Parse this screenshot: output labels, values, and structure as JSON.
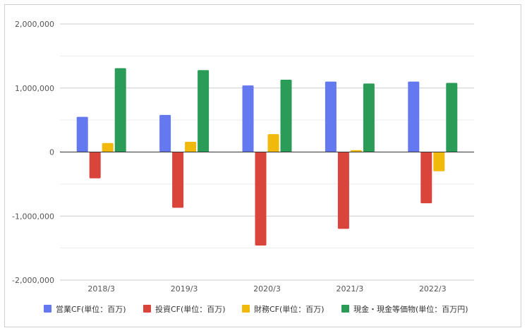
{
  "chart_data": {
    "type": "bar",
    "title": "",
    "xlabel": "",
    "ylabel": "",
    "categories": [
      "2018/3",
      "2019/3",
      "2020/3",
      "2021/3",
      "2022/3"
    ],
    "ylim": [
      -2000000,
      2000000
    ],
    "y_ticks": [
      2000000,
      1000000,
      0,
      -1000000,
      -2000000
    ],
    "y_tick_labels": [
      "2,000,000",
      "1,000,000",
      "0",
      "-1,000,000",
      "-2,000,000"
    ],
    "grid": true,
    "legend_position": "bottom",
    "series": [
      {
        "name": "営業CF(単位：百万)",
        "color": "#6478f0",
        "values": [
          550000,
          580000,
          1040000,
          1100000,
          1100000
        ]
      },
      {
        "name": "投資CF(単位：百万)",
        "color": "#d9453a",
        "values": [
          -410000,
          -870000,
          -1460000,
          -1200000,
          -800000
        ]
      },
      {
        "name": "財務CF(単位：百万)",
        "color": "#f1b90b",
        "values": [
          140000,
          160000,
          280000,
          30000,
          -300000
        ]
      },
      {
        "name": "現金・現金等価物(単位：百万円)",
        "color": "#2a9c57",
        "values": [
          1310000,
          1280000,
          1130000,
          1070000,
          1080000
        ]
      }
    ]
  }
}
